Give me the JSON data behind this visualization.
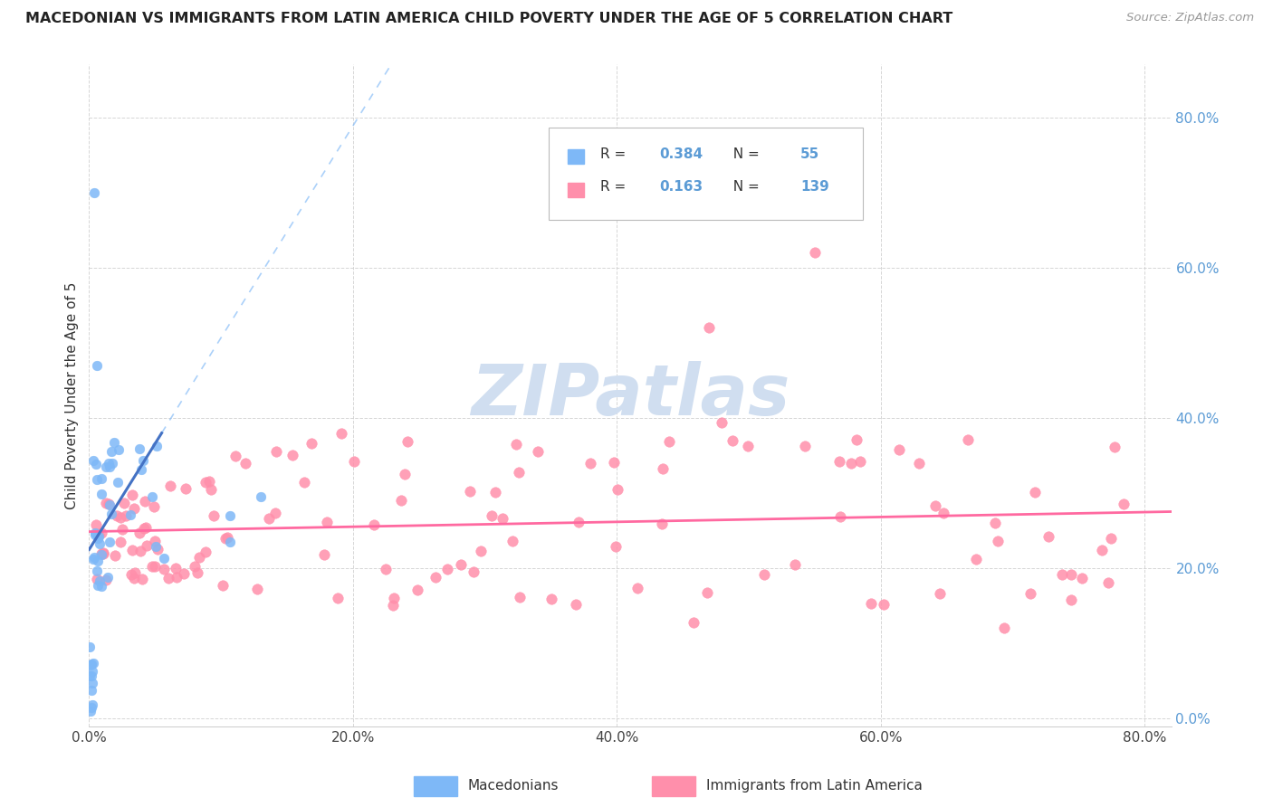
{
  "title": "MACEDONIAN VS IMMIGRANTS FROM LATIN AMERICA CHILD POVERTY UNDER THE AGE OF 5 CORRELATION CHART",
  "source": "Source: ZipAtlas.com",
  "ylabel": "Child Poverty Under the Age of 5",
  "r_macedonian": 0.384,
  "n_macedonian": 55,
  "r_latin": 0.163,
  "n_latin": 139,
  "macedonian_color": "#7EB8F7",
  "latin_color": "#FF8FAB",
  "macedonian_line_color": "#4472C4",
  "latin_line_color": "#FF69A0",
  "watermark_color": "#C8D8F0",
  "legend_macedonian": "Macedonians",
  "legend_latin": "Immigrants from Latin America",
  "tick_color": "#5B9BD5",
  "xlim": [
    0.0,
    0.82
  ],
  "ylim": [
    -0.01,
    0.87
  ],
  "x_ticks": [
    0.0,
    0.2,
    0.4,
    0.6,
    0.8
  ],
  "y_ticks": [
    0.0,
    0.2,
    0.4,
    0.6,
    0.8
  ]
}
